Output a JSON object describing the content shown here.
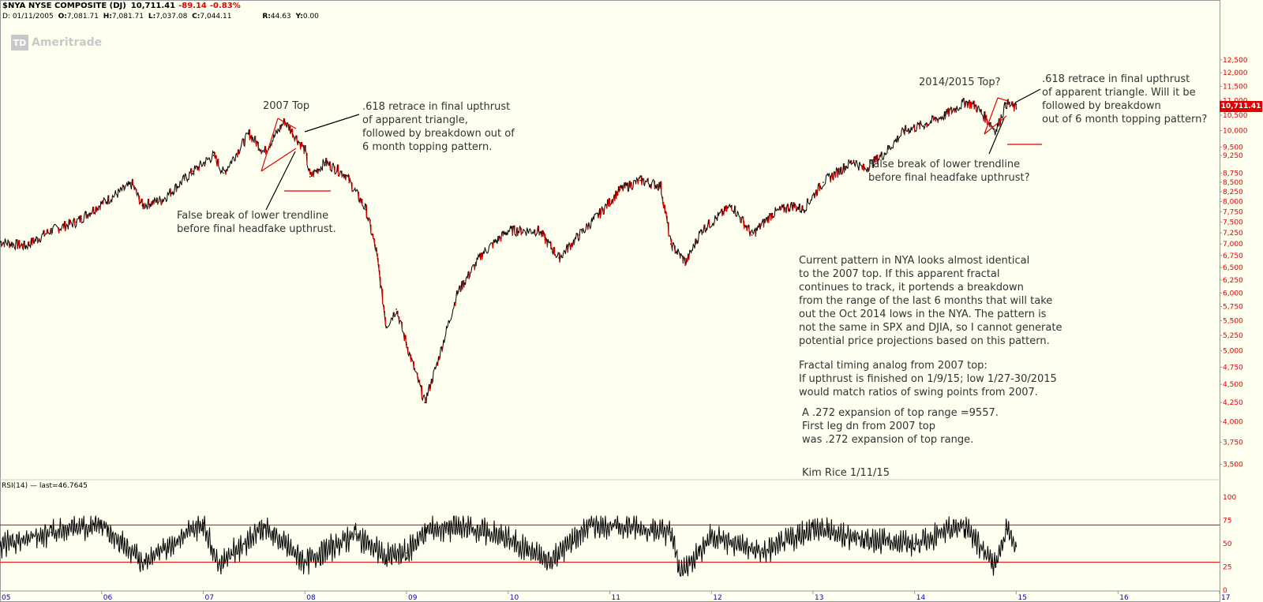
{
  "header": {
    "title": "$NYA NYSE COMPOSITE (DJ)",
    "last": "10,711.41",
    "change": "-89.14",
    "change_pct": "-0.83%",
    "date_label": "D: 01/11/2005",
    "open_label": "O:",
    "open": "7,081.71",
    "high_label": "H:",
    "high": "7,081.71",
    "low_label": "L:",
    "low": "7,037.08",
    "close_label": "C:",
    "close": "7,044.11",
    "r_label": "R:",
    "r": "44.63",
    "y_label": "Y:",
    "y": "0.00"
  },
  "logo": {
    "mark": "TD",
    "text": "Ameritrade"
  },
  "price_tag": "10,711.41",
  "rsi_label": "RSI(14) — last=46.7645",
  "colors": {
    "background": "#fffff0",
    "price_line": "#000000",
    "down_bar": "#e00000",
    "annotation": "#e00000",
    "axis_red": "#e00000",
    "axis_blue": "#0000cc",
    "text": "#333333"
  },
  "annotations": {
    "top2007_title": "2007 Top",
    "top2007_retrace": [
      ".618 retrace in final upthrust",
      "of apparent triangle,",
      "followed by breakdown out of",
      "6 month topping pattern."
    ],
    "top2007_false": [
      "False break of lower trendline",
      "before final headfake upthrust."
    ],
    "top2014_title": "2014/2015 Top?",
    "top2014_retrace": [
      ".618 retrace in final upthrust",
      "of apparent triangle. Will it be",
      "followed by breakdown",
      "out of 6 month topping pattern?"
    ],
    "top2014_false": [
      "False break of lower trendline",
      "before final headfake upthrust?"
    ],
    "commentary": [
      "Current pattern in NYA looks almost identical",
      "to the 2007 top. If this apparent fractal",
      "continues to track, it portends a breakdown",
      "from the range of the last 6 months that will take",
      "out the Oct 2014 lows in the NYA. The pattern is",
      "not the same in SPX and DJIA, so I cannot generate",
      "potential price projections based on this pattern."
    ],
    "fractal": [
      "Fractal timing analog from 2007 top:",
      "If upthrust is finished on 1/9/15; low 1/27-30/2015",
      "would match ratios of swing points from 2007."
    ],
    "expansion": [
      "A .272 expansion of top range =9557.",
      "First leg dn from 2007 top",
      "was .272 expansion of top range."
    ],
    "signature": "Kim Rice  1/11/15"
  },
  "chart_data": [
    {
      "type": "line",
      "title": "$NYA NYSE COMPOSITE (DJ)",
      "xlabel": "",
      "ylabel": "",
      "scale": "log",
      "x_ticks": [
        "05",
        "06",
        "07",
        "08",
        "09",
        "10",
        "11",
        "12",
        "13",
        "14",
        "15",
        "16",
        "17"
      ],
      "y_ticks": [
        "12,500",
        "12,000",
        "11,500",
        "11,000",
        "10,500",
        "10,000",
        "9,500",
        "9,250",
        "8,750",
        "8,500",
        "8,250",
        "8,000",
        "7,750",
        "7,500",
        "7,250",
        "7,000",
        "6,750",
        "6,500",
        "6,250",
        "6,000",
        "5,750",
        "5,500",
        "5,250",
        "5,000",
        "4,750",
        "4,500",
        "4,250",
        "4,000",
        "3,750",
        "3,500"
      ],
      "ylim": [
        3400,
        13000
      ],
      "series": [
        {
          "name": "NYA",
          "x": [
            2005.0,
            2005.25,
            2005.5,
            2005.75,
            2006.0,
            2006.3,
            2006.4,
            2006.6,
            2006.9,
            2007.1,
            2007.2,
            2007.45,
            2007.6,
            2007.8,
            2008.0,
            2008.05,
            2008.2,
            2008.4,
            2008.6,
            2008.7,
            2008.8,
            2008.9,
            2009.0,
            2009.18,
            2009.3,
            2009.5,
            2009.75,
            2010.0,
            2010.3,
            2010.5,
            2010.7,
            2010.9,
            2011.1,
            2011.3,
            2011.5,
            2011.6,
            2011.75,
            2011.9,
            2012.2,
            2012.4,
            2012.6,
            2012.8,
            2012.9,
            2013.1,
            2013.4,
            2013.5,
            2013.7,
            2013.9,
            2014.1,
            2014.3,
            2014.5,
            2014.6,
            2014.8,
            2014.9,
            2015.0
          ],
          "values": [
            7050,
            6950,
            7300,
            7500,
            7950,
            8450,
            7900,
            8050,
            8800,
            9250,
            8750,
            9900,
            9350,
            10300,
            9400,
            8650,
            9050,
            8700,
            7800,
            6850,
            5400,
            5700,
            5100,
            4250,
            4800,
            6000,
            6800,
            7300,
            7300,
            6700,
            7200,
            7700,
            8300,
            8550,
            8400,
            7000,
            6600,
            7300,
            7900,
            7200,
            7700,
            7900,
            7800,
            8500,
            9100,
            8850,
            9300,
            10000,
            10200,
            10500,
            10950,
            10800,
            10000,
            10900,
            10711
          ]
        }
      ]
    },
    {
      "type": "line",
      "title": "RSI(14)",
      "last": 46.7645,
      "y_ticks": [
        "100",
        "75",
        "50",
        "25",
        "0"
      ],
      "ylim": [
        0,
        100
      ],
      "reference_lines": [
        70,
        30
      ],
      "series": [
        {
          "name": "RSI(14)",
          "x": [
            2005.0,
            2005.5,
            2006.0,
            2006.4,
            2007.0,
            2007.15,
            2007.6,
            2008.0,
            2008.5,
            2008.8,
            2009.0,
            2009.2,
            2009.6,
            2010.0,
            2010.4,
            2010.8,
            2011.2,
            2011.6,
            2011.7,
            2012.0,
            2012.5,
            2013.0,
            2013.5,
            2014.0,
            2014.5,
            2014.8,
            2014.9,
            2015.0
          ],
          "values": [
            48,
            62,
            70,
            30,
            72,
            28,
            68,
            30,
            60,
            35,
            40,
            65,
            68,
            55,
            30,
            70,
            68,
            62,
            18,
            58,
            40,
            66,
            55,
            50,
            70,
            25,
            65,
            46.76
          ]
        }
      ]
    }
  ]
}
